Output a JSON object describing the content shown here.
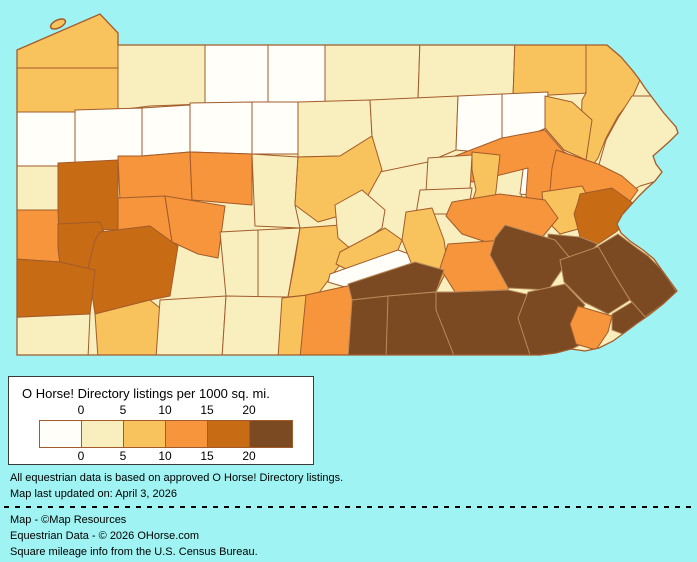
{
  "background_color": "#9FF3F3",
  "map": {
    "description": "choropleth-of-pennsylvania-counties",
    "palette": {
      "0": "#FFFEF8",
      "1": "#F9EFBE",
      "2": "#F8C35C",
      "3": "#F6953B",
      "4": "#C76B15",
      "5": "#7B4A22"
    },
    "stroke": "#A35B2B",
    "stroke_inside_brown": "#B98A5A",
    "land_base": "#F9EFBE",
    "regions": [
      {
        "id": "erie",
        "category": 2
      },
      {
        "id": "crawford",
        "category": 2
      },
      {
        "id": "warren",
        "category": 1
      },
      {
        "id": "mckean",
        "category": 0
      },
      {
        "id": "potter",
        "category": 0
      },
      {
        "id": "tioga",
        "category": 1
      },
      {
        "id": "bradford",
        "category": 1
      },
      {
        "id": "susquehanna",
        "category": 2
      },
      {
        "id": "wayne",
        "category": 2
      },
      {
        "id": "pike",
        "category": 1
      },
      {
        "id": "mercer",
        "category": 0
      },
      {
        "id": "venango",
        "category": 0
      },
      {
        "id": "forest",
        "category": 0
      },
      {
        "id": "elk",
        "category": 0
      },
      {
        "id": "cameron",
        "category": 0
      },
      {
        "id": "clinton",
        "category": 1
      },
      {
        "id": "lycoming",
        "category": 1
      },
      {
        "id": "sullivan",
        "category": 0
      },
      {
        "id": "wyoming",
        "category": 0
      },
      {
        "id": "lackawanna",
        "category": 2
      },
      {
        "id": "columbia",
        "category": 1
      },
      {
        "id": "montour",
        "category": 0
      },
      {
        "id": "luzerne",
        "category": 3
      },
      {
        "id": "monroe",
        "category": 3
      },
      {
        "id": "carbon",
        "category": 2
      },
      {
        "id": "lawrence",
        "category": 1
      },
      {
        "id": "butler",
        "category": 4
      },
      {
        "id": "clarion",
        "category": 3
      },
      {
        "id": "jefferson",
        "category": 3
      },
      {
        "id": "clearfield",
        "category": 1
      },
      {
        "id": "centre",
        "category": 2
      },
      {
        "id": "union",
        "category": 1
      },
      {
        "id": "snyder",
        "category": 1
      },
      {
        "id": "northumberland",
        "category": 2
      },
      {
        "id": "beaver",
        "category": 3
      },
      {
        "id": "allegheny",
        "category": 4
      },
      {
        "id": "armstrong",
        "category": 3
      },
      {
        "id": "indiana",
        "category": 3
      },
      {
        "id": "westmoreland",
        "category": 4
      },
      {
        "id": "cambria",
        "category": 1
      },
      {
        "id": "blair",
        "category": 1
      },
      {
        "id": "huntingdon",
        "category": 2
      },
      {
        "id": "mifflin",
        "category": 1
      },
      {
        "id": "juniata",
        "category": 2
      },
      {
        "id": "perry",
        "category": 0
      },
      {
        "id": "dauphin",
        "category": 2
      },
      {
        "id": "schuylkill",
        "category": 3
      },
      {
        "id": "lebanon",
        "category": 3
      },
      {
        "id": "northampton",
        "category": 4
      },
      {
        "id": "lehigh",
        "category": 5
      },
      {
        "id": "berks",
        "category": 5
      },
      {
        "id": "washington",
        "category": 4
      },
      {
        "id": "greene",
        "category": 1
      },
      {
        "id": "fayette",
        "category": 2
      },
      {
        "id": "somerset",
        "category": 1
      },
      {
        "id": "bedford",
        "category": 1
      },
      {
        "id": "fulton",
        "category": 2
      },
      {
        "id": "franklin",
        "category": 3
      },
      {
        "id": "cumberland",
        "category": 5
      },
      {
        "id": "adams",
        "category": 5
      },
      {
        "id": "york",
        "category": 5
      },
      {
        "id": "lancaster",
        "category": 5
      },
      {
        "id": "chester",
        "category": 5
      },
      {
        "id": "montgomery",
        "category": 5
      },
      {
        "id": "bucks",
        "category": 5
      },
      {
        "id": "philadelphia",
        "category": 5
      },
      {
        "id": "delaware",
        "category": 3
      }
    ]
  },
  "legend": {
    "title": "O Horse! Directory listings per 1000 sq. mi.",
    "tick_labels_top": [
      "0",
      "5",
      "10",
      "15",
      "20"
    ],
    "tick_labels_bottom": [
      "0",
      "5",
      "10",
      "15",
      "20"
    ],
    "swatches": [
      "#FFFEF8",
      "#F9EFBE",
      "#F8C35C",
      "#F6953B",
      "#C76B15",
      "#7B4A22"
    ]
  },
  "footer": {
    "line1": "All equestrian data is based on approved O Horse! Directory listings.",
    "line2": "Map last updated on: April 3, 2026",
    "credits": [
      "Map - ©Map Resources",
      "Equestrian Data - © 2026 OHorse.com",
      "Square mileage info from the U.S. Census Bureau."
    ]
  }
}
